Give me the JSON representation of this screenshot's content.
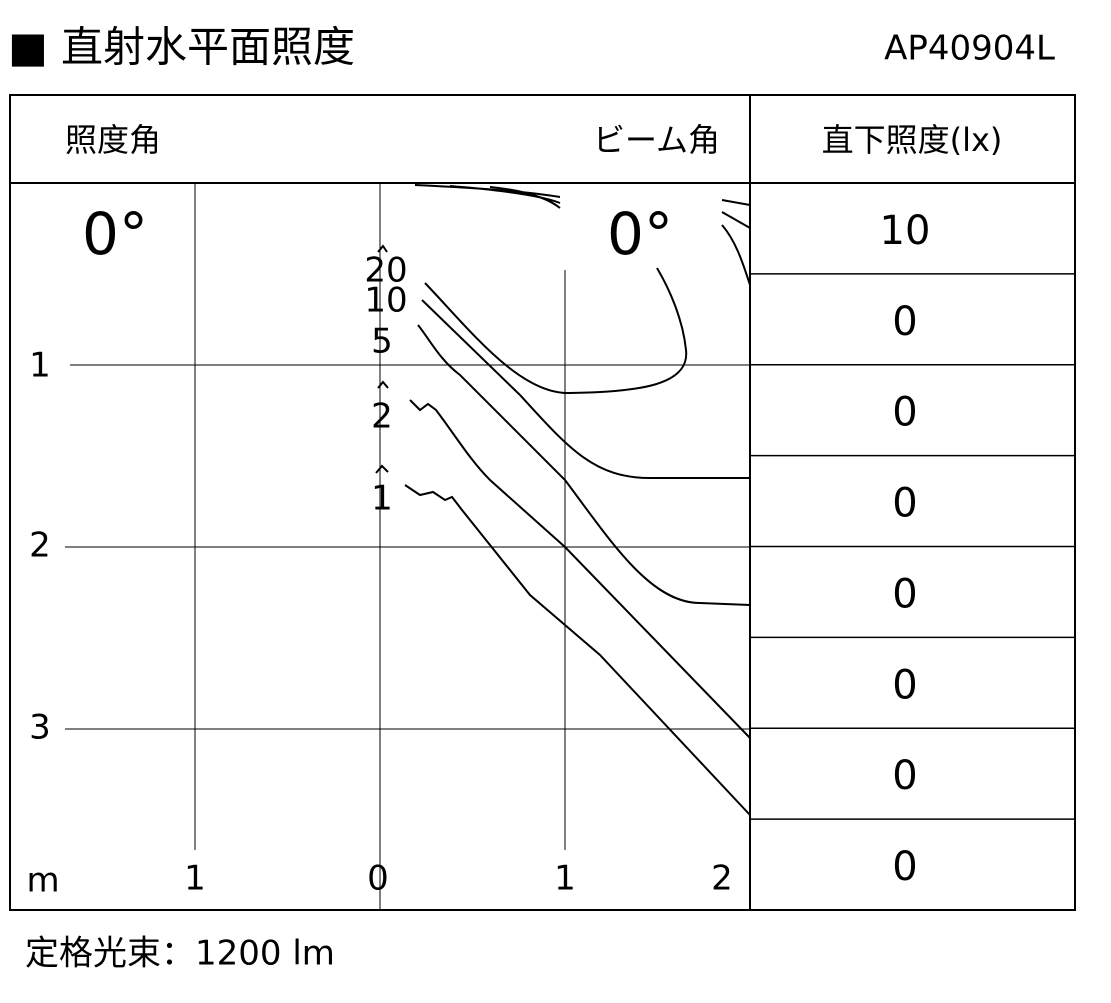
{
  "header": {
    "title": "■ 直射水平面照度",
    "model": "AP40904L"
  },
  "table": {
    "angle_label": "照度角",
    "beam_label": "ビーム角",
    "value_header": "直下照度(lx)",
    "illuminance_angle": "0°",
    "beam_angle": "0°",
    "values": [
      "10",
      "0",
      "0",
      "0",
      "0",
      "0",
      "0",
      "0"
    ]
  },
  "axes": {
    "y_labels": [
      "1",
      "2",
      "3"
    ],
    "unit": "m",
    "x_labels": [
      "1",
      "0",
      "1",
      "2"
    ]
  },
  "contours": [
    "20",
    "10",
    "5",
    "2",
    "1"
  ],
  "footer": "定格光束：1200 lm"
}
